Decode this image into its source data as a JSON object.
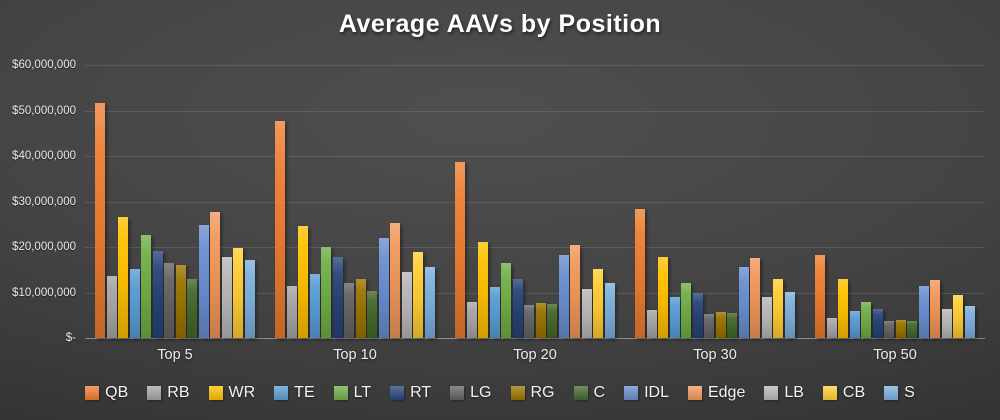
{
  "chart_data": {
    "type": "bar",
    "title": "Average AAVs by Position",
    "categories": [
      "Top 5",
      "Top 10",
      "Top 20",
      "Top 30",
      "Top 50"
    ],
    "series": [
      {
        "name": "QB",
        "color": "#ED7D31",
        "values": [
          51700000,
          47700000,
          38600000,
          28400000,
          18200000
        ]
      },
      {
        "name": "RB",
        "color": "#A5A5A5",
        "values": [
          13700000,
          11400000,
          8000000,
          6200000,
          4300000
        ]
      },
      {
        "name": "WR",
        "color": "#FFC000",
        "values": [
          26500000,
          24600000,
          21200000,
          17800000,
          12900000
        ]
      },
      {
        "name": "TE",
        "color": "#5B9BD5",
        "values": [
          15200000,
          14100000,
          11200000,
          9000000,
          5900000
        ]
      },
      {
        "name": "LT",
        "color": "#70AD47",
        "values": [
          22700000,
          20100000,
          16400000,
          12200000,
          7900000
        ]
      },
      {
        "name": "RT",
        "color": "#264478",
        "values": [
          19100000,
          17900000,
          13000000,
          9900000,
          6400000
        ]
      },
      {
        "name": "LG",
        "color": "#636363",
        "values": [
          16400000,
          12000000,
          7300000,
          5300000,
          3800000
        ]
      },
      {
        "name": "RG",
        "color": "#997300",
        "values": [
          16100000,
          12900000,
          7800000,
          5700000,
          3900000
        ]
      },
      {
        "name": "C",
        "color": "#43682B",
        "values": [
          13000000,
          10400000,
          7400000,
          5500000,
          3800000
        ]
      },
      {
        "name": "IDL",
        "color": "#698ED0",
        "values": [
          24800000,
          22000000,
          18300000,
          15600000,
          11400000
        ]
      },
      {
        "name": "Edge",
        "color": "#F1975A",
        "values": [
          27600000,
          25200000,
          20500000,
          17600000,
          12700000
        ]
      },
      {
        "name": "LB",
        "color": "#B7B7B7",
        "values": [
          17700000,
          14500000,
          10700000,
          9000000,
          6400000
        ]
      },
      {
        "name": "CB",
        "color": "#FFCD33",
        "values": [
          19800000,
          18800000,
          15200000,
          13000000,
          9500000
        ]
      },
      {
        "name": "S",
        "color": "#7CAFDD",
        "values": [
          17200000,
          15700000,
          12200000,
          10100000,
          7000000
        ]
      }
    ],
    "y_axis": {
      "min": 0,
      "max": 60000000,
      "ticks": [
        {
          "label": "$60,000,000",
          "value": 60000000
        },
        {
          "label": "$50,000,000",
          "value": 50000000
        },
        {
          "label": "$40,000,000",
          "value": 40000000
        },
        {
          "label": "$30,000,000",
          "value": 30000000
        },
        {
          "label": "$20,000,000",
          "value": 20000000
        },
        {
          "label": "$10,000,000",
          "value": 10000000
        },
        {
          "label": "$-",
          "value": 0
        }
      ]
    },
    "grid": true,
    "legend_position": "bottom",
    "style": {
      "background_center": "#4f4f4f",
      "background_edge": "#272727",
      "text_color": "#ffffff"
    }
  }
}
